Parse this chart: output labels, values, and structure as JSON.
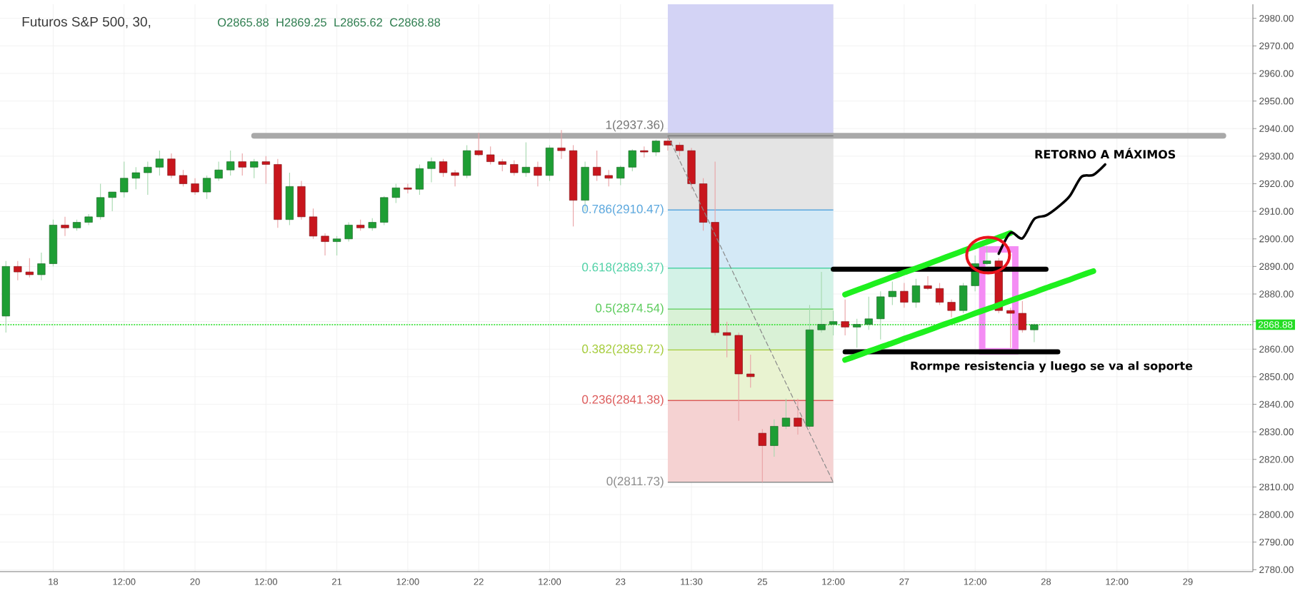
{
  "chart_data": {
    "type": "candlestick",
    "title": "Futuros S&P 500, 30,",
    "annotations": [
      "O2865.88",
      "H2869.25",
      "L2865.62",
      "C2868.88",
      "Rormpe resistencia y luego se va al soporte"
    ],
    "categories": [
      null,
      null,
      null,
      null,
      "18",
      null,
      null,
      null,
      null,
      null,
      "12:00",
      null,
      null,
      null,
      null,
      null,
      "20",
      null,
      null,
      null,
      null,
      null,
      "12:00",
      null,
      null,
      null,
      null,
      null,
      "21",
      null,
      null,
      null,
      null,
      null,
      "12:00",
      null,
      null,
      null,
      null,
      null,
      "22",
      null,
      null,
      null,
      null,
      null,
      "12:00",
      null,
      null,
      null,
      null,
      null,
      "23",
      null,
      null,
      null,
      null,
      null,
      "11:30",
      null,
      null,
      null,
      null,
      null,
      "25",
      null,
      null,
      null,
      null,
      null,
      "12:00",
      null,
      null,
      null,
      null,
      null,
      "27",
      null,
      null,
      null,
      null,
      null,
      "12:00",
      null,
      null,
      null,
      null,
      null,
      "28",
      null,
      null,
      null,
      null,
      null,
      "12:00",
      null,
      null,
      null,
      null,
      null,
      "29",
      null,
      null,
      null,
      null,
      null
    ],
    "ylim": [
      2779.3,
      2985.1
    ],
    "yticks": [
      {
        "value": 2780,
        "label": "2780.00"
      },
      {
        "value": 2790,
        "label": "2790.00"
      },
      {
        "value": 2800,
        "label": "2800.00"
      },
      {
        "value": 2810,
        "label": "2810.00"
      },
      {
        "value": 2820,
        "label": "2820.00"
      },
      {
        "value": 2830,
        "label": "2830.00"
      },
      {
        "value": 2840,
        "label": "2840.00"
      },
      {
        "value": 2850,
        "label": "2850.00"
      },
      {
        "value": 2860,
        "label": "2860.00"
      },
      {
        "value": 2870,
        "label": null
      },
      {
        "value": 2880,
        "label": "2880.00"
      },
      {
        "value": 2890,
        "label": "2890.00"
      },
      {
        "value": 2900,
        "label": "2900.00"
      },
      {
        "value": 2910,
        "label": "2910.00"
      },
      {
        "value": 2920,
        "label": "2920.00"
      },
      {
        "value": 2930,
        "label": "2930.00"
      },
      {
        "value": 2940,
        "label": "2940.00"
      },
      {
        "value": 2950,
        "label": "2950.00"
      },
      {
        "value": 2960,
        "label": "2960.00"
      },
      {
        "value": 2970,
        "label": "2970.00"
      },
      {
        "value": 2980,
        "label": "2980.00"
      }
    ],
    "grid": true,
    "bands": [
      {
        "axis": "y",
        "from": 2937.36,
        "to": 2985.1,
        "color": "#d3d3f5"
      },
      {
        "axis": "y",
        "from": 2910.47,
        "to": 2937.36,
        "color": "#e4e4e4"
      },
      {
        "axis": "y",
        "from": 2889.37,
        "to": 2910.47,
        "color": "#d4e9f6"
      },
      {
        "axis": "y",
        "from": 2874.54,
        "to": 2889.37,
        "color": "#d3f2e7"
      },
      {
        "axis": "y",
        "from": 2859.72,
        "to": 2874.54,
        "color": "#d9f1d6"
      },
      {
        "axis": "y",
        "from": 2841.38,
        "to": 2859.72,
        "color": "#e9f3d1"
      },
      {
        "axis": "y",
        "from": 2811.73,
        "to": 2841.38,
        "color": "#f5d2d2"
      }
    ],
    "ref_lines": [
      {
        "axis": "y",
        "value": 2937.36,
        "label": "1(2937.36)",
        "color": "#767676"
      },
      {
        "axis": "y",
        "value": 2910.47,
        "label": "0.786(2910.47)",
        "color": "#5aa7de"
      },
      {
        "axis": "y",
        "value": 2889.37,
        "label": "0.618(2889.37)",
        "color": "#4fd1a6"
      },
      {
        "axis": "y",
        "value": 2874.54,
        "label": "0.5(2874.54)",
        "color": "#5acb5a"
      },
      {
        "axis": "y",
        "value": 2859.72,
        "label": "0.382(2859.72)",
        "color": "#a5cc3a"
      },
      {
        "axis": "y",
        "value": 2841.38,
        "label": "0.236(2841.38)",
        "color": "#dd5c5c"
      },
      {
        "axis": "y",
        "value": 2811.73,
        "label": "0(2811.73)",
        "color": "#8c8c8c"
      },
      {
        "axis": "y",
        "value": 2868.88,
        "label": "2868.88",
        "color": "#22dd22",
        "line_style": "dotted"
      }
    ],
    "series": [
      {
        "ohlc": [
          [
            2872,
            2892,
            2866,
            2890
          ],
          [
            2890,
            2892,
            2885,
            2888
          ],
          [
            2888,
            2893,
            2886,
            2887
          ],
          [
            2887,
            2895,
            2885,
            2891
          ],
          [
            2891,
            2907,
            2890,
            2905
          ],
          [
            2905,
            2908,
            2901,
            2904
          ],
          [
            2904,
            2907,
            2903,
            2906
          ],
          [
            2906,
            2909,
            2905,
            2908
          ],
          [
            2908,
            2920,
            2907,
            2915
          ],
          [
            2915,
            2917,
            2910,
            2917
          ],
          [
            2917,
            2928,
            2915,
            2922
          ],
          [
            2922,
            2926,
            2918,
            2924
          ],
          [
            2924,
            2928,
            2916,
            2926
          ],
          [
            2926,
            2932,
            2923,
            2929
          ],
          [
            2929,
            2931,
            2922,
            2923
          ],
          [
            2923,
            2925,
            2919,
            2920
          ],
          [
            2920,
            2922,
            2916,
            2917
          ],
          [
            2917,
            2923,
            2914.5,
            2922
          ],
          [
            2922,
            2928,
            2921,
            2925
          ],
          [
            2925,
            2932,
            2923,
            2928
          ],
          [
            2928,
            2931,
            2923,
            2926
          ],
          [
            2926,
            2929,
            2922,
            2928
          ],
          [
            2928,
            2930,
            2920,
            2927
          ],
          [
            2927,
            2929,
            2904,
            2907
          ],
          [
            2907,
            2924,
            2905,
            2919
          ],
          [
            2919,
            2921,
            2907,
            2908
          ],
          [
            2908,
            2911,
            2900,
            2901
          ],
          [
            2901,
            2902,
            2894,
            2899
          ],
          [
            2899,
            2901,
            2894,
            2900
          ],
          [
            2900,
            2906,
            2899,
            2905
          ],
          [
            2905,
            2907,
            2903,
            2904
          ],
          [
            2904,
            2907.5,
            2903,
            2906
          ],
          [
            2906,
            2915.5,
            2905,
            2915
          ],
          [
            2915,
            2920,
            2913,
            2918.5
          ],
          [
            2918.5,
            2920,
            2916.5,
            2918
          ],
          [
            2918,
            2927,
            2916,
            2925.5
          ],
          [
            2925.5,
            2929.5,
            2920.5,
            2928
          ],
          [
            2928,
            2929,
            2922.5,
            2924
          ],
          [
            2924,
            2925,
            2919,
            2923
          ],
          [
            2923,
            2934,
            2922,
            2932
          ],
          [
            2932,
            2938.5,
            2930,
            2930.5
          ],
          [
            2930.5,
            2933.5,
            2927,
            2928
          ],
          [
            2928,
            2929,
            2924.5,
            2927
          ],
          [
            2927,
            2928.5,
            2923,
            2924
          ],
          [
            2924,
            2935,
            2922.5,
            2926
          ],
          [
            2926,
            2928,
            2919,
            2923
          ],
          [
            2923,
            2934,
            2921,
            2933
          ],
          [
            2933,
            2939.5,
            2929,
            2932
          ],
          [
            2932,
            2934,
            2904.5,
            2914
          ],
          [
            2914,
            2928,
            2910,
            2926
          ],
          [
            2926,
            2932,
            2921,
            2923
          ],
          [
            2923,
            2925,
            2919,
            2922
          ],
          [
            2922,
            2926.5,
            2919.5,
            2926
          ],
          [
            2926,
            2932.5,
            2924.5,
            2932
          ],
          [
            2932,
            2933.5,
            2929.5,
            2931.5
          ],
          [
            2931.5,
            2936,
            2930,
            2935.5
          ],
          [
            2935.5,
            2936.5,
            2932,
            2934
          ],
          [
            2934,
            2935,
            2930,
            2932
          ],
          [
            2932,
            2933,
            2918,
            2920
          ],
          [
            2920,
            2922,
            2903,
            2906
          ],
          [
            2906,
            2928,
            2865,
            2866
          ],
          [
            2866,
            2870,
            2857,
            2865
          ],
          [
            2865,
            2866,
            2834,
            2851
          ],
          [
            2851,
            2858,
            2846,
            2850
          ],
          [
            2829.5,
            2831,
            2811.7,
            2825
          ],
          [
            2825,
            2834.5,
            2821,
            2832
          ],
          [
            2832,
            2842,
            2831,
            2835
          ],
          [
            2835,
            2842,
            2829,
            2832
          ],
          [
            2832,
            2876,
            2831,
            2867
          ],
          [
            2867,
            2888,
            2866,
            2869
          ],
          [
            2869,
            2874,
            2865,
            2870
          ],
          [
            2870,
            2878,
            2865,
            2868
          ],
          [
            2868,
            2871,
            2860.5,
            2869
          ],
          [
            2869,
            2879,
            2867,
            2871
          ],
          [
            2871,
            2881,
            2863.5,
            2879
          ],
          [
            2879,
            2884.5,
            2876,
            2881
          ],
          [
            2881,
            2884,
            2875,
            2877
          ],
          [
            2877,
            2885.5,
            2875,
            2883
          ],
          [
            2883,
            2886.5,
            2881.5,
            2882
          ],
          [
            2882,
            2884,
            2876,
            2877
          ],
          [
            2877,
            2878,
            2871.5,
            2874
          ],
          [
            2874,
            2884,
            2873,
            2883
          ],
          [
            2883,
            2894,
            2881,
            2891
          ],
          [
            2891,
            2897.5,
            2890.5,
            2892
          ],
          [
            2892,
            2893,
            2873,
            2874
          ],
          [
            2874,
            2875,
            2860.5,
            2873
          ],
          [
            2873,
            2877.5,
            2866,
            2867
          ],
          [
            2867,
            2869.25,
            2862.5,
            2868.88
          ],
          null,
          null,
          null,
          null,
          null,
          null,
          null,
          null,
          null,
          null,
          null,
          null,
          null,
          null,
          null,
          null,
          null,
          null
        ],
        "colors": [
          "#1e9e34",
          "#c8161d",
          "#c8161d",
          "#1e9e34",
          "#1e9e34",
          "#c8161d",
          "#1e9e34",
          "#1e9e34",
          "#1e9e34",
          "#1e9e34",
          "#1e9e34",
          "#1e9e34",
          "#1e9e34",
          "#1e9e34",
          "#c8161d",
          "#c8161d",
          "#c8161d",
          "#1e9e34",
          "#1e9e34",
          "#1e9e34",
          "#c8161d",
          "#1e9e34",
          "#c8161d",
          "#c8161d",
          "#1e9e34",
          "#c8161d",
          "#c8161d",
          "#c8161d",
          "#1e9e34",
          "#1e9e34",
          "#c8161d",
          "#1e9e34",
          "#1e9e34",
          "#1e9e34",
          "#c8161d",
          "#1e9e34",
          "#1e9e34",
          "#c8161d",
          "#c8161d",
          "#1e9e34",
          "#c8161d",
          "#c8161d",
          "#c8161d",
          "#c8161d",
          "#1e9e34",
          "#c8161d",
          "#1e9e34",
          "#c8161d",
          "#c8161d",
          "#1e9e34",
          "#c8161d",
          "#c8161d",
          "#1e9e34",
          "#1e9e34",
          "#c8161d",
          "#1e9e34",
          "#c8161d",
          "#c8161d",
          "#c8161d",
          "#c8161d",
          "#c8161d",
          "#c8161d",
          "#c8161d",
          "#c8161d",
          "#c8161d",
          "#1e9e34",
          "#1e9e34",
          "#c8161d",
          "#1e9e34",
          "#1e9e34",
          "#1e9e34",
          "#c8161d",
          "#1e9e34",
          "#1e9e34",
          "#1e9e34",
          "#1e9e34",
          "#c8161d",
          "#1e9e34",
          "#c8161d",
          "#c8161d",
          "#c8161d",
          "#1e9e34",
          "#1e9e34",
          "#1e9e34",
          "#c8161d",
          "#c8161d",
          "#c8161d",
          "#1e9e34",
          null,
          null,
          null,
          null,
          null,
          null,
          null,
          null,
          null,
          null,
          null,
          null,
          null,
          null,
          null,
          null,
          null,
          null
        ]
      },
      {
        "type": "line",
        "color": "#8a8a8a",
        "line_style": "dashed",
        "values": [
          null,
          null,
          null,
          null,
          null,
          null,
          null,
          null,
          null,
          null,
          null,
          null,
          null,
          null,
          null,
          null,
          null,
          null,
          null,
          null,
          null,
          null,
          null,
          null,
          null,
          null,
          null,
          null,
          null,
          null,
          null,
          null,
          null,
          null,
          null,
          null,
          null,
          null,
          null,
          null,
          null,
          null,
          null,
          null,
          null,
          null,
          null,
          null,
          null,
          null,
          null,
          null,
          null,
          null,
          null,
          null,
          2937.4,
          2928.4,
          2919.4,
          2910.5,
          2901.5,
          2892.5,
          2883.5,
          2874.5,
          2865.5,
          2856.6,
          2847.6,
          2838.6,
          2829.6,
          2820.6,
          2811.7,
          null,
          null,
          null,
          null,
          null,
          null,
          null,
          null,
          null,
          null,
          null,
          null,
          null,
          null,
          null,
          null,
          null,
          null,
          null,
          null,
          null,
          null,
          null,
          null,
          null,
          null,
          null,
          null,
          null,
          null,
          null,
          null,
          null,
          null,
          null
        ]
      },
      {
        "type": "line",
        "color": "#a9a9a9",
        "values": [
          null,
          null,
          null,
          null,
          null,
          null,
          null,
          null,
          null,
          null,
          null,
          null,
          null,
          null,
          null,
          null,
          null,
          null,
          null,
          null,
          null,
          2937.4,
          2937.4,
          2937.4,
          2937.4,
          2937.4,
          2937.4,
          2937.4,
          2937.4,
          2937.4,
          2937.4,
          2937.4,
          2937.4,
          2937.4,
          2937.4,
          2937.4,
          2937.4,
          2937.4,
          2937.4,
          2937.4,
          2937.4,
          2937.4,
          2937.4,
          2937.4,
          2937.4,
          2937.4,
          2937.4,
          2937.4,
          2937.4,
          2937.4,
          2937.4,
          2937.4,
          2937.4,
          2937.4,
          2937.4,
          2937.4,
          2937.4,
          2937.4,
          2937.4,
          2937.4,
          2937.4,
          2937.4,
          2937.4,
          2937.4,
          2937.4,
          2937.4,
          2937.4,
          2937.4,
          2937.4,
          2937.4,
          2937.4,
          2937.4,
          2937.4,
          2937.4,
          2937.4,
          2937.4,
          2937.4,
          2937.4,
          2937.4,
          2937.4,
          2937.4,
          2937.4,
          2937.4,
          2937.4,
          2937.4,
          2937.4,
          2937.4,
          2937.4,
          2937.4,
          2937.4,
          2937.4,
          2937.4,
          2937.4,
          2937.4,
          2937.4,
          2937.4,
          2937.4,
          2937.4,
          2937.4,
          2937.4,
          2937.4,
          2937.4,
          2937.4,
          2937.4,
          null,
          null
        ]
      },
      {
        "type": "line",
        "color": "#000000",
        "values": [
          null,
          null,
          null,
          null,
          null,
          null,
          null,
          null,
          null,
          null,
          null,
          null,
          null,
          null,
          null,
          null,
          null,
          null,
          null,
          null,
          null,
          null,
          null,
          null,
          null,
          null,
          null,
          null,
          null,
          null,
          null,
          null,
          null,
          null,
          null,
          null,
          null,
          null,
          null,
          null,
          null,
          null,
          null,
          null,
          null,
          null,
          null,
          null,
          null,
          null,
          null,
          null,
          null,
          null,
          null,
          null,
          null,
          null,
          null,
          null,
          null,
          null,
          null,
          null,
          null,
          null,
          null,
          null,
          null,
          null,
          2889,
          2889,
          2889,
          2889,
          2889,
          2889,
          2889,
          2889,
          2889,
          2889,
          2889,
          2889,
          2889,
          2889,
          2889,
          2889,
          2889,
          2889,
          2889,
          null,
          null,
          null,
          null,
          null,
          null,
          null,
          null,
          null,
          null,
          null,
          null,
          null,
          null,
          null,
          null,
          null
        ]
      },
      {
        "type": "line",
        "color": "#000000",
        "values": [
          null,
          null,
          null,
          null,
          null,
          null,
          null,
          null,
          null,
          null,
          null,
          null,
          null,
          null,
          null,
          null,
          null,
          null,
          null,
          null,
          null,
          null,
          null,
          null,
          null,
          null,
          null,
          null,
          null,
          null,
          null,
          null,
          null,
          null,
          null,
          null,
          null,
          null,
          null,
          null,
          null,
          null,
          null,
          null,
          null,
          null,
          null,
          null,
          null,
          null,
          null,
          null,
          null,
          null,
          null,
          null,
          null,
          null,
          null,
          null,
          null,
          null,
          null,
          null,
          null,
          null,
          null,
          null,
          null,
          null,
          null,
          2859,
          2859,
          2859,
          2859,
          2859,
          2859,
          2859,
          2859,
          2859,
          2859,
          2859,
          2859,
          2859,
          2859,
          2859,
          2859,
          2859,
          2859,
          2859,
          null,
          null,
          null,
          null,
          null,
          null,
          null,
          null,
          null,
          null,
          null,
          null,
          null,
          null,
          null,
          null
        ]
      },
      {
        "type": "line",
        "color": "#1ef01e",
        "values": [
          null,
          null,
          null,
          null,
          null,
          null,
          null,
          null,
          null,
          null,
          null,
          null,
          null,
          null,
          null,
          null,
          null,
          null,
          null,
          null,
          null,
          null,
          null,
          null,
          null,
          null,
          null,
          null,
          null,
          null,
          null,
          null,
          null,
          null,
          null,
          null,
          null,
          null,
          null,
          null,
          null,
          null,
          null,
          null,
          null,
          null,
          null,
          null,
          null,
          null,
          null,
          null,
          null,
          null,
          null,
          null,
          null,
          null,
          null,
          null,
          null,
          null,
          null,
          null,
          null,
          null,
          null,
          null,
          null,
          null,
          null,
          2879.8,
          2881.4,
          2883.0,
          2884.6,
          2886.2,
          2887.8,
          2889.3,
          2890.9,
          2892.5,
          2894.1,
          2895.7,
          2897.3,
          2898.9,
          2900.5,
          2902.1,
          null,
          null,
          null,
          null,
          null,
          null,
          null,
          null,
          null,
          null,
          null,
          null,
          null,
          null,
          null,
          null,
          null,
          null,
          null,
          null
        ]
      },
      {
        "type": "line",
        "color": "#1ef01e",
        "values": [
          null,
          null,
          null,
          null,
          null,
          null,
          null,
          null,
          null,
          null,
          null,
          null,
          null,
          null,
          null,
          null,
          null,
          null,
          null,
          null,
          null,
          null,
          null,
          null,
          null,
          null,
          null,
          null,
          null,
          null,
          null,
          null,
          null,
          null,
          null,
          null,
          null,
          null,
          null,
          null,
          null,
          null,
          null,
          null,
          null,
          null,
          null,
          null,
          null,
          null,
          null,
          null,
          null,
          null,
          null,
          null,
          null,
          null,
          null,
          null,
          null,
          null,
          null,
          null,
          null,
          null,
          null,
          null,
          null,
          null,
          null,
          2856.1,
          2857.6,
          2859.2,
          2860.7,
          2862.2,
          2863.8,
          2865.3,
          2866.8,
          2868.4,
          2869.9,
          2871.4,
          2873.0,
          2874.5,
          2876.0,
          2877.6,
          2879.1,
          2880.6,
          2882.2,
          2883.7,
          2885.2,
          2886.8,
          2888.3,
          null,
          null,
          null,
          null,
          null,
          null,
          null,
          null,
          null,
          null,
          null,
          null,
          null
        ]
      },
      {
        "type": "line",
        "name": "RETORNO A MÁXIMOS",
        "color": "#000000",
        "values": [
          null,
          null,
          null,
          null,
          null,
          null,
          null,
          null,
          null,
          null,
          null,
          null,
          null,
          null,
          null,
          null,
          null,
          null,
          null,
          null,
          null,
          null,
          null,
          null,
          null,
          null,
          null,
          null,
          null,
          null,
          null,
          null,
          null,
          null,
          null,
          null,
          null,
          null,
          null,
          null,
          null,
          null,
          null,
          null,
          null,
          null,
          null,
          null,
          null,
          null,
          null,
          null,
          null,
          null,
          null,
          null,
          null,
          null,
          null,
          null,
          null,
          null,
          null,
          null,
          null,
          null,
          null,
          null,
          null,
          null,
          null,
          null,
          null,
          null,
          null,
          null,
          null,
          null,
          null,
          null,
          null,
          null,
          null,
          null,
          2894.6,
          2902.2,
          2900.2,
          2907.2,
          2908.5,
          2911.5,
          2915.5,
          2922.5,
          2923.2,
          2927.0,
          null,
          null,
          null,
          null,
          null,
          null,
          null,
          null,
          null,
          null,
          null,
          null
        ]
      }
    ]
  }
}
